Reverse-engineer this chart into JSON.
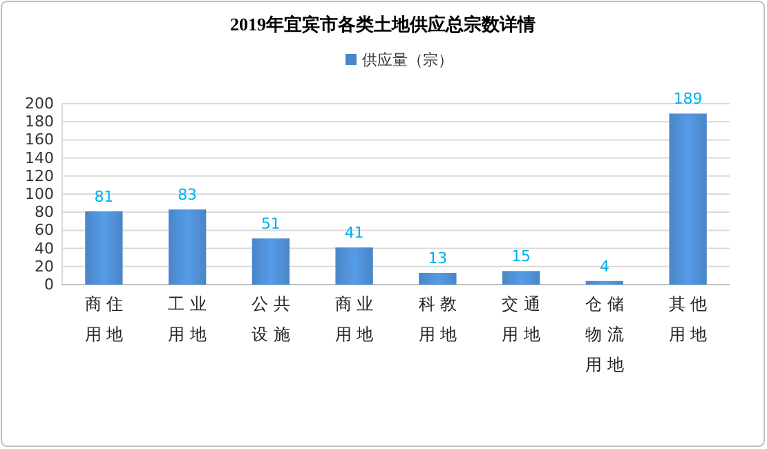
{
  "chart_data": {
    "type": "bar",
    "title": "2019年宜宾市各类土地供应总宗数详情",
    "categories": [
      "商住用地",
      "工业用地",
      "公共设施",
      "商业用地",
      "科教用地",
      "交通用地",
      "仓储物流用地",
      "其他用地"
    ],
    "series": [
      {
        "name": "供应量（宗）",
        "color": "#4a86c8",
        "values": [
          81,
          83,
          51,
          41,
          13,
          15,
          4,
          189
        ]
      }
    ],
    "ylim": [
      0,
      200
    ],
    "yticks": [
      0,
      20,
      40,
      60,
      80,
      100,
      120,
      140,
      160,
      180,
      200
    ],
    "grid": "y",
    "legend": "top",
    "data_labels": true
  }
}
